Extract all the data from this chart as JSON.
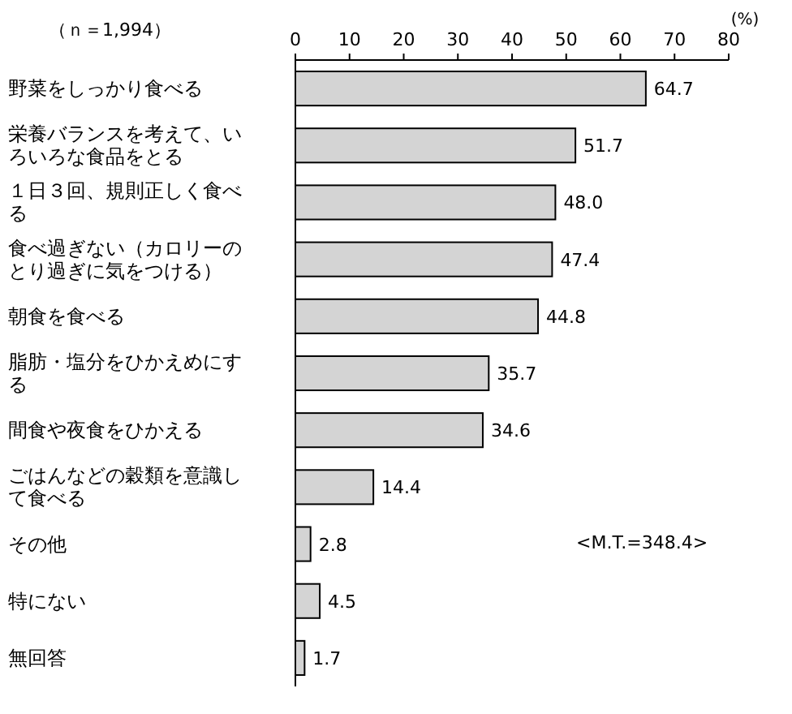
{
  "chart_data": {
    "type": "bar",
    "orientation": "horizontal",
    "xlabel": "(%)",
    "categories": [
      "野菜をしっかり食べる",
      "栄養バランスを考えて、いろいろな食品をとる",
      "１日３回、規則正しく食べる",
      "食べ過ぎない（カロリーのとり過ぎに気をつける）",
      "朝食を食べる",
      "脂肪・塩分をひかえめにする",
      "間食や夜食をひかえる",
      "ごはんなどの穀類を意識して食べる",
      "その他",
      "特にない",
      "無回答"
    ],
    "values": [
      64.7,
      51.7,
      48.0,
      47.4,
      44.8,
      35.7,
      34.6,
      14.4,
      2.8,
      4.5,
      1.7
    ],
    "value_labels": [
      "64.7",
      "51.7",
      "48.0",
      "47.4",
      "44.8",
      "35.7",
      "34.6",
      "14.4",
      "2.8",
      "4.5",
      "1.7"
    ],
    "color": "#d4d4d4",
    "xlim": [
      0,
      80
    ],
    "xticks": [
      0,
      10,
      20,
      30,
      40,
      50,
      60,
      70,
      80
    ],
    "grid": false,
    "annotations": [
      "（ｎ＝1,994）",
      "<M.T.=348.4>"
    ]
  }
}
